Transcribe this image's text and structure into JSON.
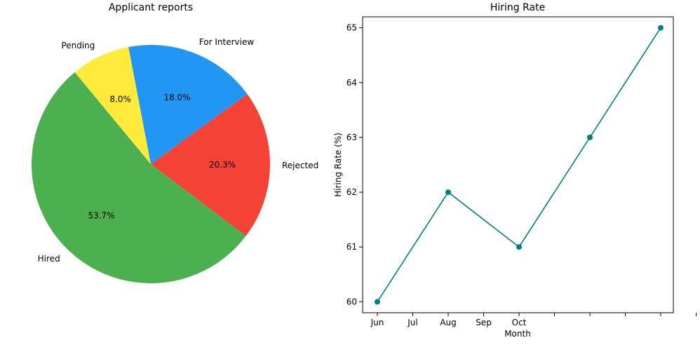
{
  "chart_data": [
    {
      "type": "pie",
      "title": "Applicant reports",
      "slices": [
        {
          "label": "Rejected",
          "value": 20.3,
          "pct_label": "20.3%",
          "color": "#f44336"
        },
        {
          "label": "Hired",
          "value": 53.7,
          "pct_label": "53.7%",
          "color": "#4caf50"
        },
        {
          "label": "Pending",
          "value": 8.0,
          "pct_label": "8.0%",
          "color": "#ffeb3b"
        },
        {
          "label": "For Interview",
          "value": 18.0,
          "pct_label": "18.0%",
          "color": "#2196f3"
        }
      ]
    },
    {
      "type": "line",
      "title": "Hiring Rate",
      "xlabel": "Month",
      "ylabel": "Hiring Rate (%)",
      "x_tick_labels": [
        "Jun",
        "Jul",
        "Aug",
        "Sep",
        "Oct",
        "",
        "",
        "",
        "",
        ""
      ],
      "y_ticks": [
        60,
        61,
        62,
        63,
        64,
        65
      ],
      "ylim": [
        59.8,
        65.2
      ],
      "color": "#00807f",
      "x_points": [
        0,
        2,
        4,
        6,
        8
      ],
      "y_points": [
        60,
        62,
        61,
        63,
        65
      ]
    }
  ]
}
